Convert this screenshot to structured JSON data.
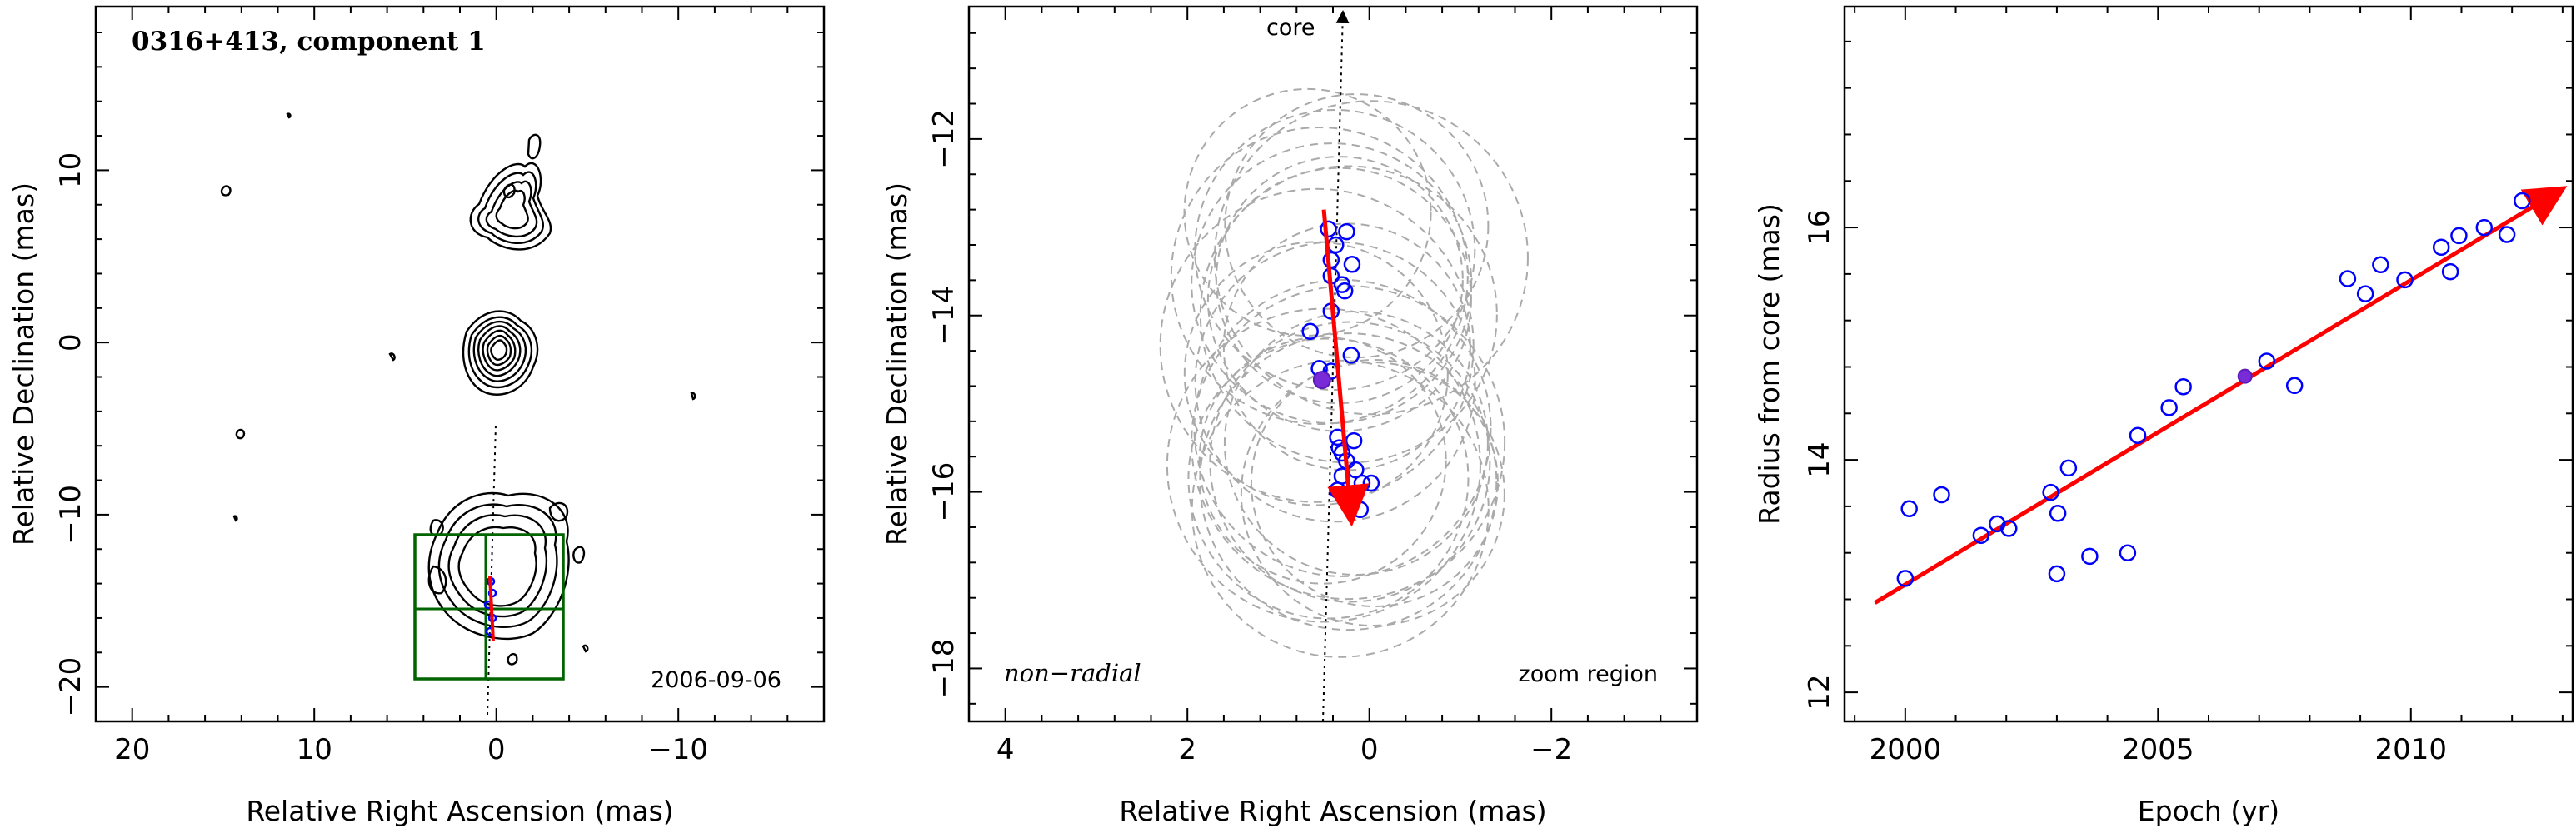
{
  "chart_data": [
    {
      "type": "contour",
      "title": "0316+413, component 1",
      "xlabel": "Relative Right Ascension (mas)",
      "ylabel": "Relative Declination (mas)",
      "xlim": [
        22,
        -18
      ],
      "ylim": [
        -22,
        19.5
      ],
      "xticks": [
        20,
        10,
        0,
        -10
      ],
      "yticks": [
        10,
        0,
        -10,
        -20
      ],
      "annotation": "2006-09-06",
      "zoom_box": {
        "x": [
          4.5,
          -3.8
        ],
        "y": [
          -18.6,
          -10.5
        ]
      },
      "colors": {
        "box": "#006400",
        "arrow": "#ff0000",
        "contours": "#000000"
      }
    },
    {
      "type": "scatter",
      "title": "",
      "xlabel": "Relative Right Ascension (mas)",
      "ylabel": "Relative Declination (mas)",
      "xlim": [
        4.4,
        -3.6
      ],
      "ylim": [
        -18.6,
        -10.5
      ],
      "xticks": [
        4,
        2,
        0,
        -2
      ],
      "yticks": [
        -12,
        -14,
        -16,
        -18
      ],
      "core_label": "core",
      "left_label": "non−radial",
      "right_label": "zoom region",
      "arrow": {
        "from": [
          0.5,
          -12.8
        ],
        "to": [
          0.2,
          -16.3
        ],
        "color": "#ff0000"
      },
      "highlight": {
        "x": 0.52,
        "y": -14.73
      },
      "points": [
        [
          0.45,
          -13.02
        ],
        [
          0.25,
          -13.05
        ],
        [
          0.37,
          -13.2
        ],
        [
          0.42,
          -13.37
        ],
        [
          0.19,
          -13.42
        ],
        [
          0.42,
          -13.55
        ],
        [
          0.3,
          -13.65
        ],
        [
          0.27,
          -13.72
        ],
        [
          0.42,
          -13.95
        ],
        [
          0.65,
          -14.18
        ],
        [
          0.2,
          -14.45
        ],
        [
          0.42,
          -14.63
        ],
        [
          0.55,
          -14.6
        ],
        [
          0.35,
          -15.38
        ],
        [
          0.17,
          -15.42
        ],
        [
          0.33,
          -15.5
        ],
        [
          0.3,
          -15.56
        ],
        [
          0.25,
          -15.65
        ],
        [
          0.15,
          -15.75
        ],
        [
          0.3,
          -15.82
        ],
        [
          0.08,
          -15.9
        ],
        [
          -0.02,
          -15.9
        ],
        [
          0.35,
          -15.98
        ],
        [
          0.1,
          -16.2
        ]
      ],
      "colors": {
        "points": "#0000ff",
        "circles": "#aaaaaa"
      }
    },
    {
      "type": "scatter",
      "title": "",
      "xlabel": "Epoch (yr)",
      "ylabel": "Radius from core (mas)",
      "xlim": [
        1998.8,
        2013.2
      ],
      "ylim": [
        11.75,
        17.9
      ],
      "xticks": [
        2000,
        2005,
        2010
      ],
      "yticks": [
        12,
        14,
        16
      ],
      "fit_line": {
        "from": [
          1999.4,
          12.77
        ],
        "to": [
          2012.95,
          16.32
        ],
        "color": "#ff0000"
      },
      "highlight": {
        "x": 2006.72,
        "y": 14.72
      },
      "points": [
        [
          2000.0,
          12.98
        ],
        [
          2000.08,
          13.58
        ],
        [
          2000.72,
          13.7
        ],
        [
          2001.5,
          13.35
        ],
        [
          2001.82,
          13.45
        ],
        [
          2002.05,
          13.41
        ],
        [
          2002.88,
          13.72
        ],
        [
          2003.0,
          13.02
        ],
        [
          2003.02,
          13.54
        ],
        [
          2003.23,
          13.93
        ],
        [
          2003.65,
          13.17
        ],
        [
          2004.4,
          13.2
        ],
        [
          2004.6,
          14.21
        ],
        [
          2005.22,
          14.45
        ],
        [
          2005.5,
          14.63
        ],
        [
          2007.15,
          14.85
        ],
        [
          2007.7,
          14.64
        ],
        [
          2008.75,
          15.56
        ],
        [
          2009.1,
          15.43
        ],
        [
          2009.4,
          15.68
        ],
        [
          2009.88,
          15.55
        ],
        [
          2010.6,
          15.83
        ],
        [
          2010.78,
          15.62
        ],
        [
          2010.95,
          15.93
        ],
        [
          2011.45,
          16.0
        ],
        [
          2011.9,
          15.94
        ],
        [
          2012.2,
          16.23
        ]
      ],
      "colors": {
        "points": "#0000ff",
        "fit": "#ff0000"
      }
    }
  ]
}
